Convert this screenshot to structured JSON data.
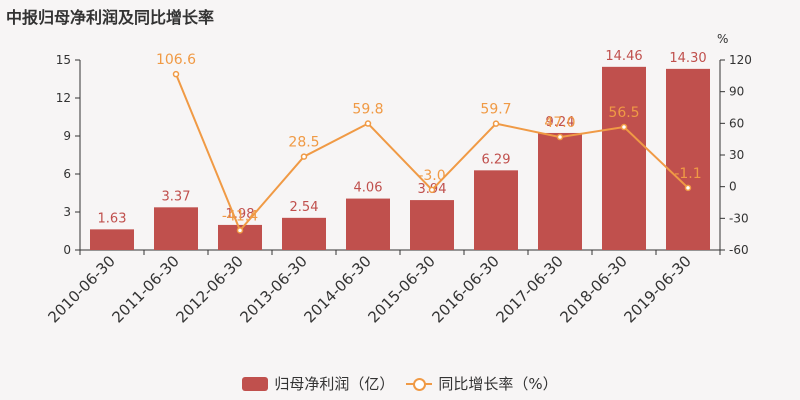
{
  "title": "中报归母净利润及同比增长率",
  "colors": {
    "bar": "#c0504d",
    "line": "#f09a45",
    "axis": "#333333",
    "background": "#f7f5f5"
  },
  "chart_data": {
    "type": "bar",
    "categories": [
      "2010-06-30",
      "2011-06-30",
      "2012-06-30",
      "2013-06-30",
      "2014-06-30",
      "2015-06-30",
      "2016-06-30",
      "2017-06-30",
      "2018-06-30",
      "2019-06-30"
    ],
    "series": [
      {
        "name": "归母净利润（亿）",
        "type": "bar",
        "axis": "left",
        "values": [
          1.63,
          3.37,
          1.98,
          2.54,
          4.06,
          3.94,
          6.29,
          9.24,
          14.46,
          14.3
        ],
        "labels": [
          "1.63",
          "3.37",
          "1.98",
          "2.54",
          "4.06",
          "3.94",
          "6.29",
          "9.24",
          "14.46",
          "14.30"
        ]
      },
      {
        "name": "同比增长率（%）",
        "type": "line",
        "axis": "right",
        "values": [
          null,
          106.6,
          -41.4,
          28.5,
          59.8,
          -3.0,
          59.7,
          47.0,
          56.5,
          -1.1
        ],
        "labels": [
          "",
          "106.6",
          "-41.4",
          "28.5",
          "59.8",
          "-3.0",
          "59.7",
          "47.0",
          "56.5",
          "-1.1"
        ]
      }
    ],
    "ylim_left": [
      0,
      15
    ],
    "yticks_left": [
      0,
      3,
      6,
      9,
      12,
      15
    ],
    "ylim_right": [
      -60,
      120
    ],
    "yticks_right": [
      -60,
      -30,
      0,
      30,
      60,
      90,
      120
    ],
    "ylabel_right": "%",
    "legend_position": "bottom-center",
    "grid": false
  }
}
